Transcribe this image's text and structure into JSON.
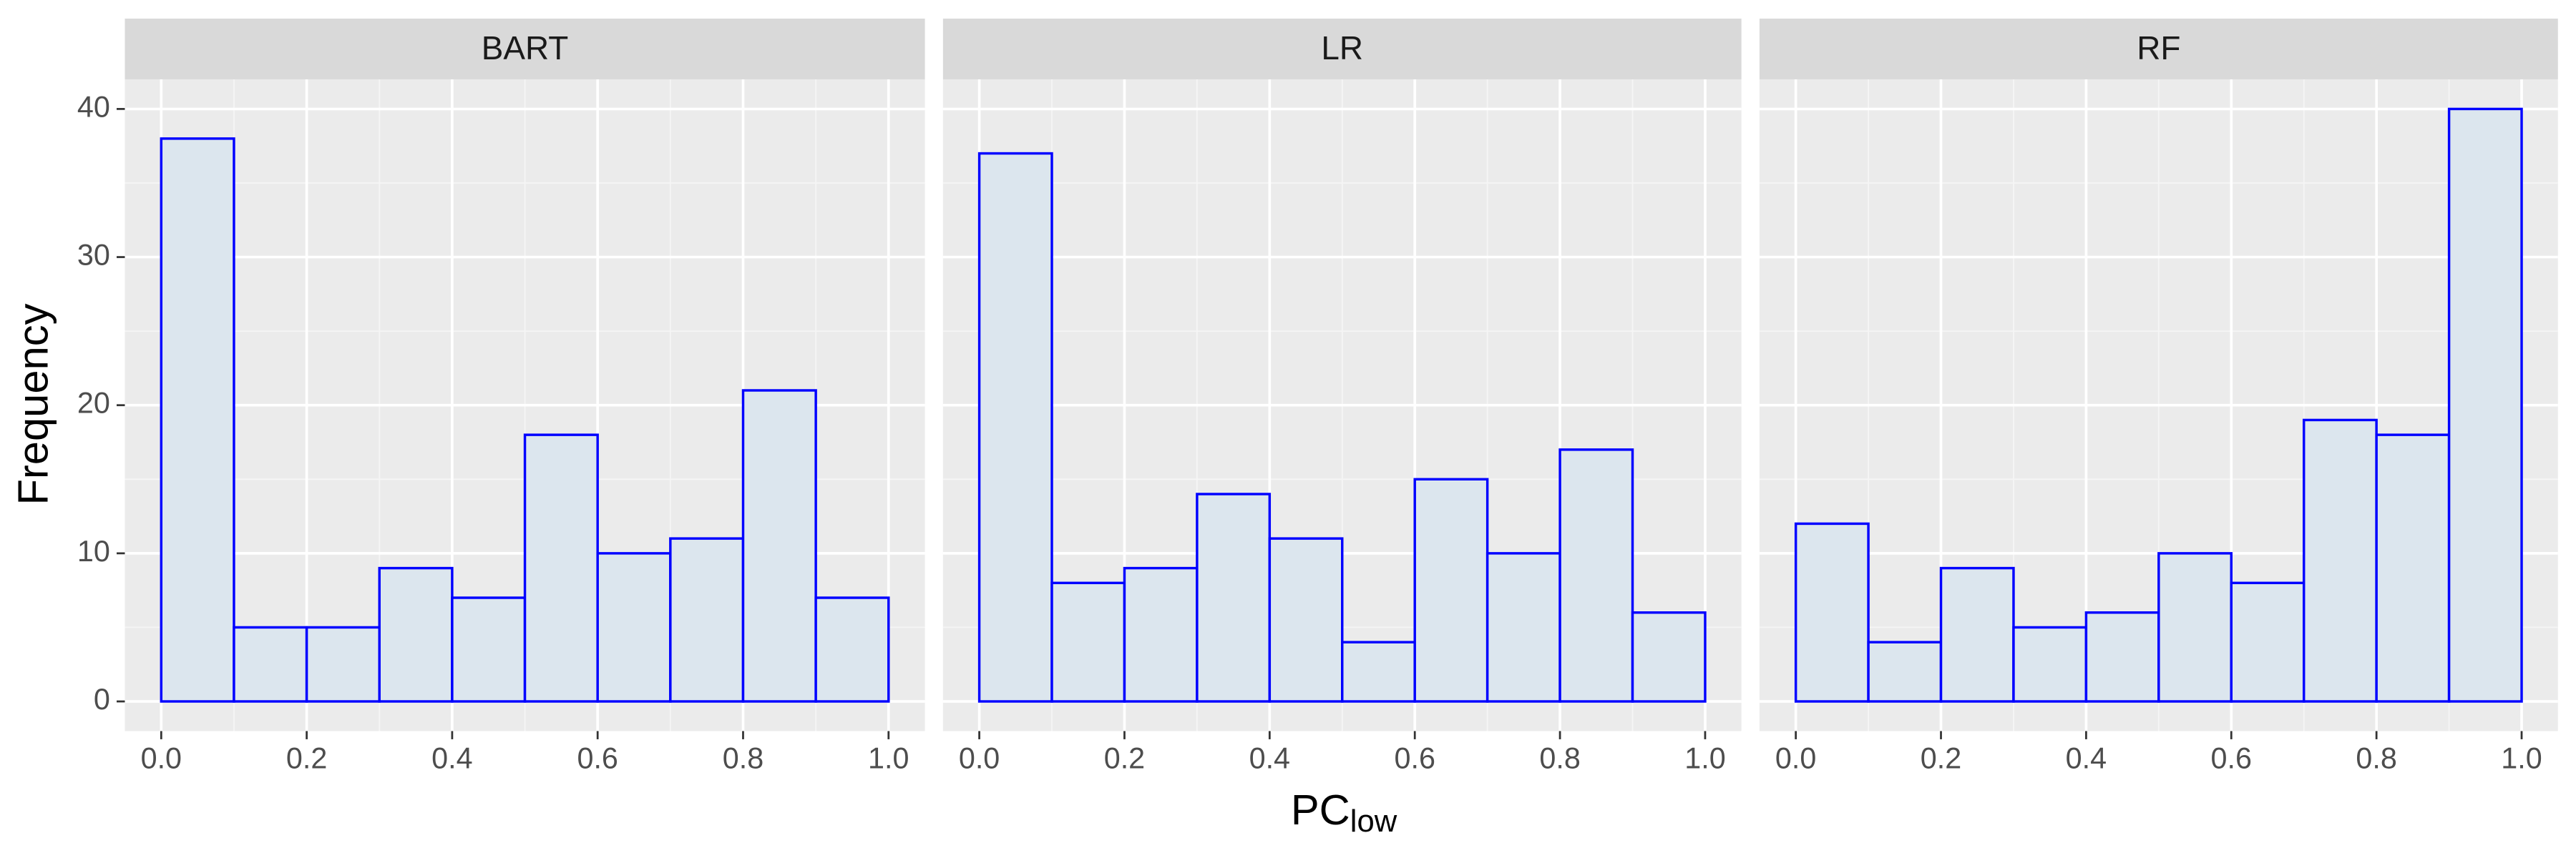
{
  "y_label": "Frequency",
  "x_label": "PC",
  "x_label_sub": "low",
  "chart_data": [
    {
      "type": "histogram",
      "title": "BART",
      "bins": [
        0,
        0.1,
        0.2,
        0.3,
        0.4,
        0.5,
        0.6,
        0.7,
        0.8,
        0.9,
        1
      ],
      "values": [
        38,
        5,
        5,
        9,
        7,
        18,
        10,
        11,
        21,
        7
      ],
      "color": "#0000ff",
      "fill": "#dce6ee",
      "xlim": [
        -0.05,
        1.05
      ],
      "xticks": [
        {
          "value": 0,
          "label": "0.0"
        },
        0.2,
        0.4,
        0.6,
        0.8,
        {
          "value": 1,
          "label": "1.0"
        }
      ],
      "ylim": [
        -2,
        42
      ],
      "yticks": [
        0,
        10,
        20,
        30,
        40
      ],
      "grid": true
    },
    {
      "type": "histogram",
      "title": "LR",
      "bins": [
        0,
        0.1,
        0.2,
        0.3,
        0.4,
        0.5,
        0.6,
        0.7,
        0.8,
        0.9,
        1
      ],
      "values": [
        37,
        8,
        9,
        14,
        11,
        4,
        15,
        10,
        17,
        6
      ],
      "color": "#0000ff",
      "fill": "#dce6ee",
      "xlim": [
        -0.05,
        1.05
      ],
      "xticks": [
        {
          "value": 0,
          "label": "0.0"
        },
        0.2,
        0.4,
        0.6,
        0.8,
        {
          "value": 1,
          "label": "1.0"
        }
      ],
      "ylim": [
        -2,
        42
      ],
      "yticks": [
        0,
        10,
        20,
        30,
        40
      ],
      "grid": true
    },
    {
      "type": "histogram",
      "title": "RF",
      "bins": [
        0,
        0.1,
        0.2,
        0.3,
        0.4,
        0.5,
        0.6,
        0.7,
        0.8,
        0.9,
        1
      ],
      "values": [
        12,
        4,
        9,
        5,
        6,
        10,
        8,
        19,
        18,
        40
      ],
      "color": "#0000ff",
      "fill": "#dce6ee",
      "xlim": [
        -0.05,
        1.05
      ],
      "xticks": [
        {
          "value": 0,
          "label": "0.0"
        },
        0.2,
        0.4,
        0.6,
        0.8,
        {
          "value": 1,
          "label": "1.0"
        }
      ],
      "ylim": [
        -2,
        42
      ],
      "yticks": [
        0,
        10,
        20,
        30,
        40
      ],
      "grid": true
    }
  ]
}
